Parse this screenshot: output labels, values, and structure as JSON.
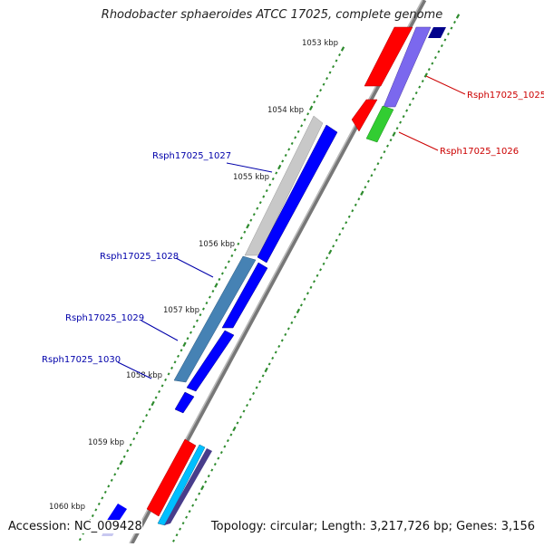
{
  "title": "Rhodobacter sphaeroides ATCC 17025, complete genome",
  "footer": {
    "accession": "Accession: NC_009428",
    "summary": "Topology: circular; Length: 3,217,726 bp; Genes: 3,156"
  },
  "ticks": [
    "1053 kbp",
    "1054 kbp",
    "1055 kbp",
    "1056 kbp",
    "1057 kbp",
    "1058 kbp",
    "1059 kbp",
    "1060 kbp"
  ],
  "gene_labels": [
    {
      "text": "Rsph17025_1025",
      "color": "#cc0000"
    },
    {
      "text": "Rsph17025_1026",
      "color": "#cc0000"
    },
    {
      "text": "Rsph17025_1027",
      "color": "#0000aa"
    },
    {
      "text": "Rsph17025_1028",
      "color": "#0000aa"
    },
    {
      "text": "Rsph17025_1029",
      "color": "#0000aa"
    },
    {
      "text": "Rsph17025_1030",
      "color": "#0000aa"
    }
  ],
  "colors": {
    "red": "#ff0000",
    "blue": "#0000ff",
    "navy": "#00008b",
    "slate_blue": "#7b68ee",
    "green": "#32cd32",
    "grey": "#c0c0c0",
    "steel_blue": "#4682b4",
    "cyan": "#00bfff",
    "dark_slate": "#483d8b",
    "backbone": "#888888",
    "tick_green": "#2e8b2e"
  }
}
